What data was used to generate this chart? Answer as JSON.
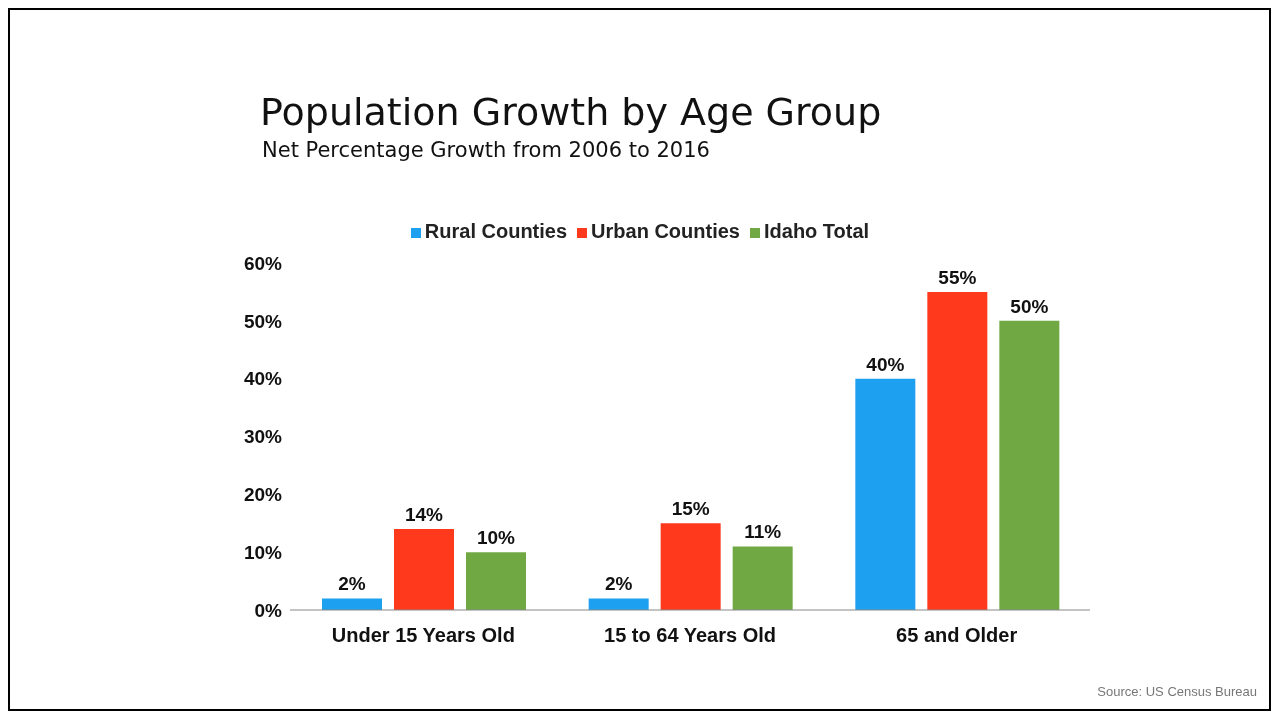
{
  "chart_data": {
    "type": "bar",
    "title": "Population Growth by Age Group",
    "subtitle": "Net Percentage Growth from 2006 to 2016",
    "categories": [
      "Under 15 Years Old",
      "15 to 64 Years Old",
      "65 and Older"
    ],
    "series": [
      {
        "name": "Rural Counties",
        "color": "#1ea0f0",
        "values": [
          2,
          2,
          40
        ],
        "value_labels": [
          "2%",
          "2%",
          "40%"
        ]
      },
      {
        "name": "Urban Counties",
        "color": "#ff3a1c",
        "values": [
          14,
          15,
          55
        ],
        "value_labels": [
          "14%",
          "15%",
          "55%"
        ]
      },
      {
        "name": "Idaho Total",
        "color": "#70a844",
        "values": [
          10,
          11,
          50
        ],
        "value_labels": [
          "10%",
          "11%",
          "50%"
        ]
      }
    ],
    "ylim": [
      0,
      60
    ],
    "yticks": [
      {
        "value": 0,
        "label": "0%"
      },
      {
        "value": 10,
        "label": "10%"
      },
      {
        "value": 20,
        "label": "20%"
      },
      {
        "value": 30,
        "label": "30%"
      },
      {
        "value": 40,
        "label": "40%"
      },
      {
        "value": 50,
        "label": "50%"
      },
      {
        "value": 60,
        "label": "60%"
      }
    ],
    "grid": false,
    "legend": "top",
    "annotations": [
      "Source: US Census Bureau"
    ]
  }
}
